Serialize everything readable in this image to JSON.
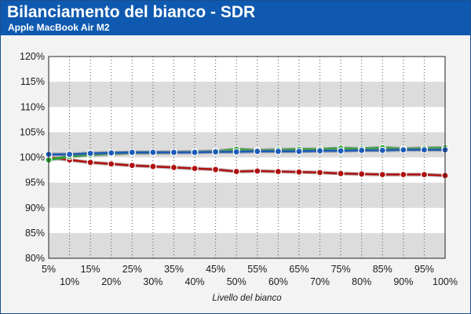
{
  "header": {
    "title": "Bilanciamento del bianco - SDR",
    "subtitle": "Apple MacBook Air M2"
  },
  "colors": {
    "header_bg": "#0f5ab0",
    "red": "#b01010",
    "green": "#22a32c",
    "blue": "#1c5bb8",
    "band_dark": "#dcdcdc",
    "band_light": "#ffffff"
  },
  "chart_data": {
    "type": "line",
    "title": "Bilanciamento del bianco - SDR",
    "subtitle": "Apple MacBook Air M2",
    "xlabel": "Livello del bianco",
    "ylabel": "",
    "x": [
      "5%",
      "10%",
      "15%",
      "20%",
      "25%",
      "30%",
      "35%",
      "40%",
      "45%",
      "50%",
      "55%",
      "60%",
      "65%",
      "70%",
      "75%",
      "80%",
      "85%",
      "90%",
      "95%",
      "100%"
    ],
    "yticks": [
      "80%",
      "85%",
      "90%",
      "95%",
      "100%",
      "105%",
      "110%",
      "115%",
      "120%"
    ],
    "ylim": [
      80,
      120
    ],
    "grid": true,
    "legend": "none",
    "series": [
      {
        "color": "#b01010",
        "values": [
          100.0,
          99.5,
          99.0,
          98.7,
          98.4,
          98.2,
          98.0,
          97.8,
          97.6,
          97.2,
          97.3,
          97.2,
          97.1,
          97.0,
          96.8,
          96.7,
          96.6,
          96.6,
          96.6,
          96.4
        ]
      },
      {
        "color": "#22a32c",
        "values": [
          99.5,
          100.2,
          100.5,
          100.7,
          100.9,
          100.9,
          101.0,
          101.1,
          101.2,
          101.6,
          101.4,
          101.5,
          101.6,
          101.6,
          101.8,
          101.7,
          101.9,
          101.7,
          101.8,
          101.9
        ]
      },
      {
        "color": "#1c5bb8",
        "values": [
          100.6,
          100.6,
          100.8,
          100.9,
          101.0,
          101.0,
          101.0,
          101.0,
          101.1,
          101.1,
          101.2,
          101.2,
          101.2,
          101.3,
          101.3,
          101.4,
          101.4,
          101.5,
          101.5,
          101.5
        ]
      }
    ]
  }
}
